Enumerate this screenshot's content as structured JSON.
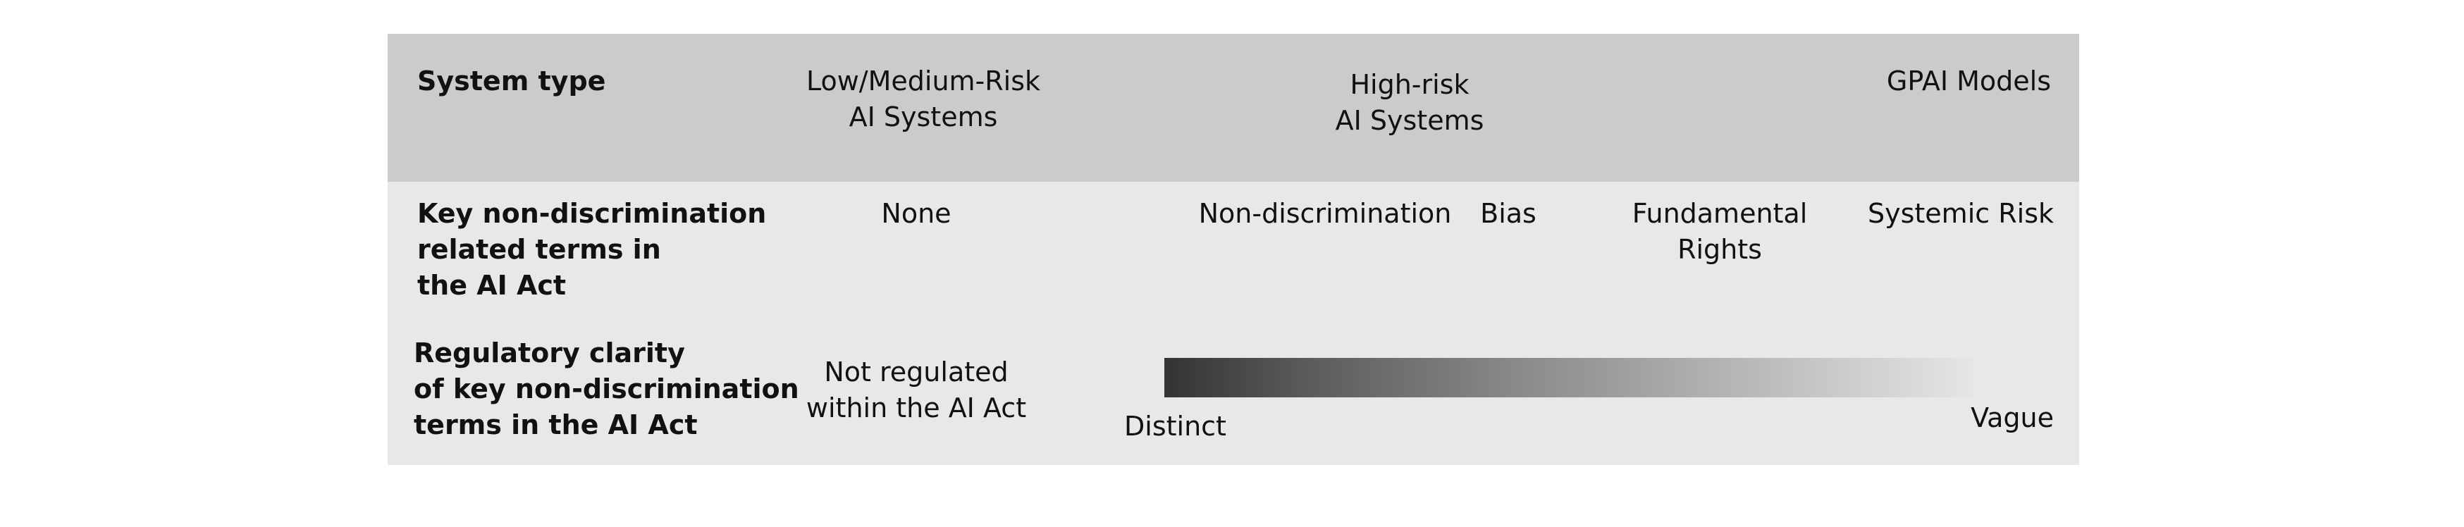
{
  "header": {
    "row_label": "System type",
    "columns": [
      {
        "line1": "Low/Medium-Risk",
        "line2": "AI Systems"
      },
      {
        "line1": "High-risk",
        "line2": "AI Systems"
      },
      {
        "line1": "GPAI Models",
        "line2": ""
      }
    ]
  },
  "terms_row": {
    "label_lines": [
      "Key non-discrimination",
      "related terms in",
      "the AI Act"
    ],
    "low_medium": "None",
    "high_risk_terms": [
      {
        "line1": "Non-discrimination",
        "line2": ""
      },
      {
        "line1": "Bias",
        "line2": ""
      },
      {
        "line1": "Fundamental",
        "line2": "Rights"
      }
    ],
    "gpai": "Systemic Risk"
  },
  "clarity_row": {
    "label_lines": [
      "Regulatory clarity",
      "of key non-discrimination",
      "terms in the AI Act"
    ],
    "low_medium_lines": [
      "Not regulated",
      "within the AI Act"
    ],
    "scale_start_label": "Distinct",
    "scale_end_label": "Vague",
    "gradient_colors": {
      "start": "#333333",
      "end": "#e6e6e6"
    }
  }
}
